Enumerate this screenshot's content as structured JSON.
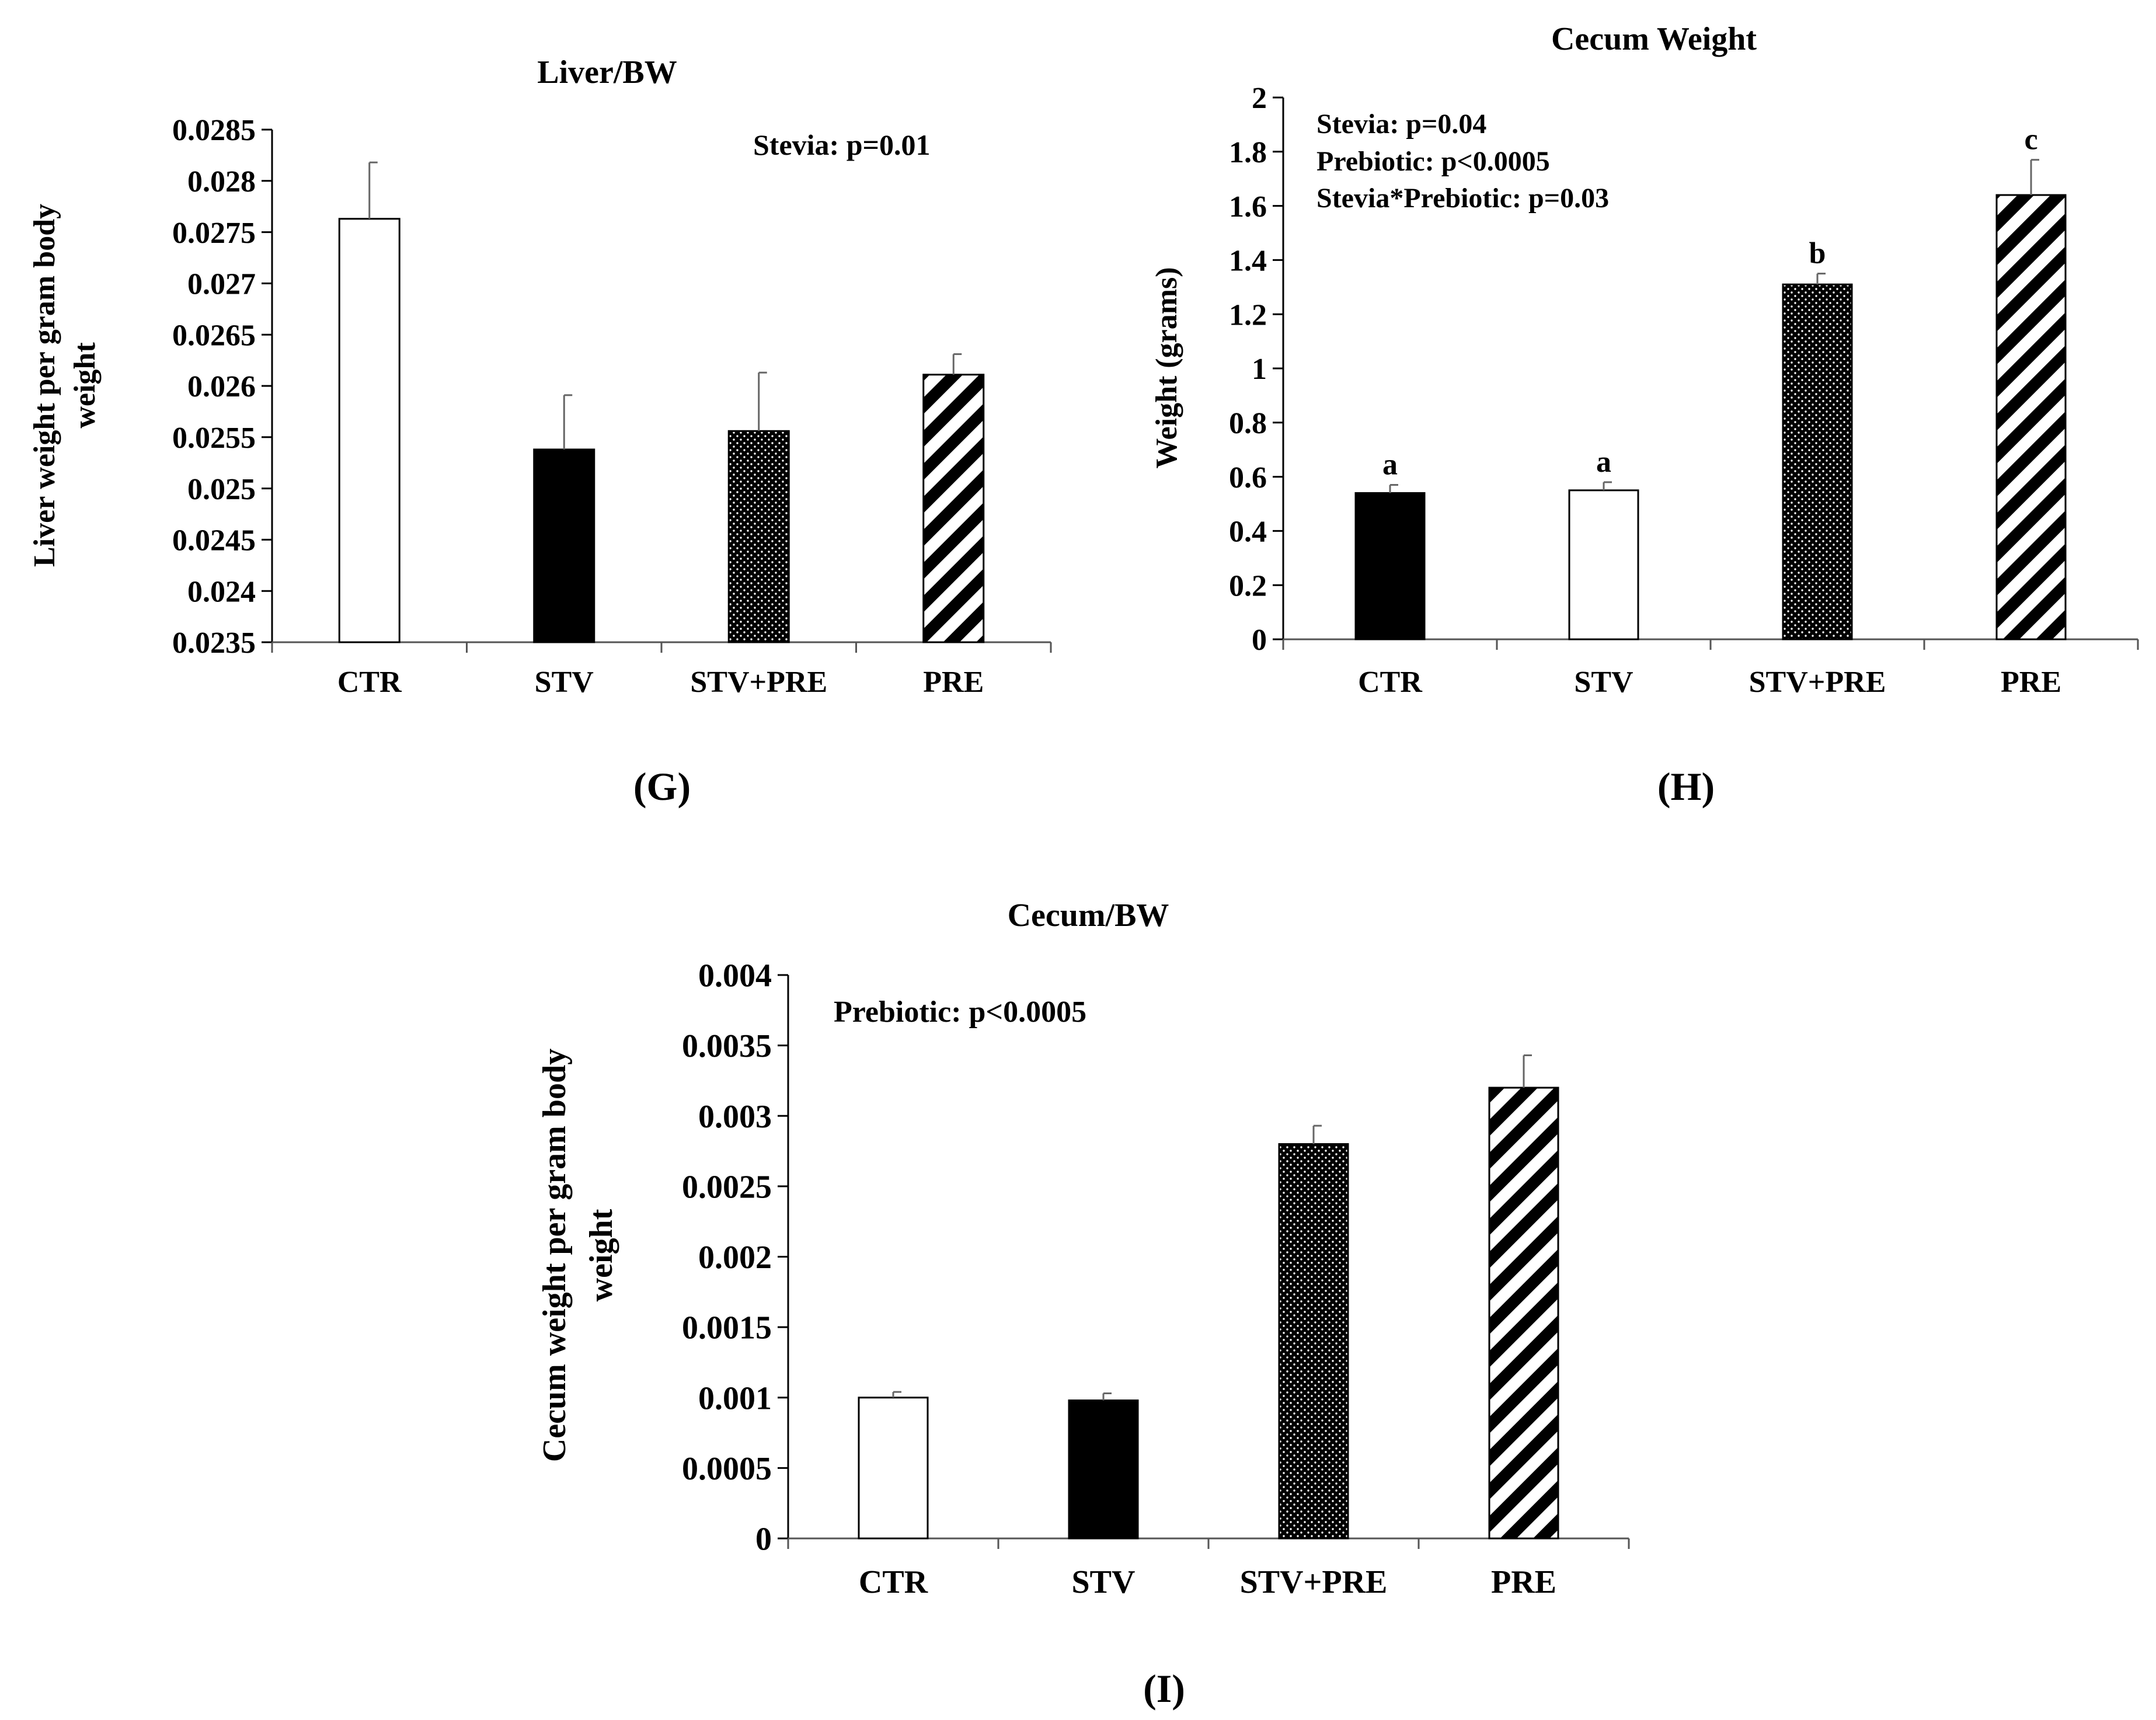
{
  "chart_data": [
    {
      "panel": "(G)",
      "type": "bar",
      "title": "Liver/BW",
      "ylabel": "Liver weight per gram body weight",
      "ylabel_lines": [
        "Liver weight per gram body",
        "weight"
      ],
      "xlabel": "",
      "categories": [
        "CTR",
        "STV",
        "STV+PRE",
        "PRE"
      ],
      "values": [
        0.02763,
        0.02538,
        0.02556,
        0.02611
      ],
      "errors": [
        0.00055,
        0.00053,
        0.00057,
        0.0002
      ],
      "patterns": [
        "white",
        "black",
        "dots",
        "stripes"
      ],
      "ylim": [
        0.0235,
        0.0285
      ],
      "yticks": [
        "0.0235",
        "0.024",
        "0.0245",
        "0.025",
        "0.0255",
        "0.026",
        "0.0265",
        "0.027",
        "0.0275",
        "0.028",
        "0.0285"
      ],
      "annotations": [
        "Stevia: p=0.01"
      ],
      "bar_labels": [],
      "grid": false
    },
    {
      "panel": "(H)",
      "type": "bar",
      "title": "Cecum Weight",
      "ylabel": "Weight (grams)",
      "ylabel_lines": [
        "Weight (grams)"
      ],
      "xlabel": "",
      "categories": [
        "CTR",
        "STV",
        "STV+PRE",
        "PRE"
      ],
      "values": [
        0.54,
        0.55,
        1.31,
        1.64
      ],
      "errors": [
        0.03,
        0.03,
        0.04,
        0.13
      ],
      "patterns": [
        "black",
        "white",
        "dots",
        "stripes"
      ],
      "ylim": [
        0,
        2
      ],
      "yticks": [
        "0",
        "0.2",
        "0.4",
        "0.6",
        "0.8",
        "1",
        "1.2",
        "1.4",
        "1.6",
        "1.8",
        "2"
      ],
      "annotations": [
        "Stevia: p=0.04",
        "Prebiotic: p<0.0005",
        "Stevia*Prebiotic: p=0.03"
      ],
      "bar_labels": [
        "a",
        "a",
        "b",
        "c"
      ],
      "grid": false
    },
    {
      "panel": "(I)",
      "type": "bar",
      "title": "Cecum/BW",
      "ylabel": "Cecum weight per gram body weight",
      "ylabel_lines": [
        "Cecum weight per gram body",
        "weight"
      ],
      "xlabel": "",
      "categories": [
        "CTR",
        "STV",
        "STV+PRE",
        "PRE"
      ],
      "values": [
        0.001,
        0.00098,
        0.0028,
        0.0032
      ],
      "errors": [
        4e-05,
        5e-05,
        0.00013,
        0.00023
      ],
      "patterns": [
        "white",
        "black",
        "dots",
        "stripes"
      ],
      "ylim": [
        0,
        0.004
      ],
      "yticks": [
        "0",
        "0.0005",
        "0.001",
        "0.0015",
        "0.002",
        "0.0025",
        "0.003",
        "0.0035",
        "0.004"
      ],
      "annotations": [
        "Prebiotic: p<0.0005"
      ],
      "bar_labels": [],
      "grid": false
    }
  ]
}
